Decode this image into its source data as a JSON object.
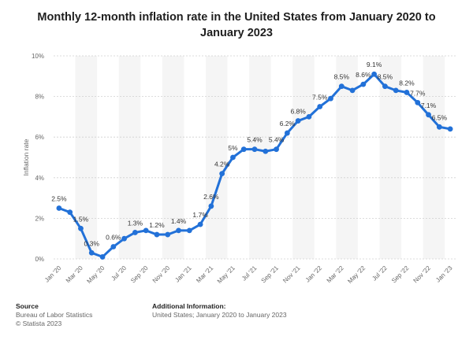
{
  "title": "Monthly 12-month inflation rate in the United States from January 2020 to January 2023",
  "source": {
    "heading": "Source",
    "line1": "Bureau of Labor Statistics",
    "line2": "© Statista 2023"
  },
  "additional_info": {
    "heading": "Additional Information:",
    "line1": "United States; January 2020 to January 2023"
  },
  "colors": {
    "line": "#2271d8",
    "band": "#f5f5f5",
    "grid": "#d0d0d0",
    "text": "#444444"
  },
  "chart_data": {
    "type": "line",
    "title": "Monthly 12-month inflation rate in the United States from January 2020 to January 2023",
    "xlabel": "",
    "ylabel": "Inflation rate",
    "ylim": [
      0,
      10
    ],
    "yticks": [
      "0%",
      "2%",
      "4%",
      "6%",
      "8%",
      "10%"
    ],
    "grid": true,
    "xticks": [
      "Jan '20",
      "Mar '20",
      "May '20",
      "Jul '20",
      "Sep '20",
      "Nov '20",
      "Jan '21",
      "Mar '21",
      "May '21",
      "Jul '21",
      "Sep '21",
      "Nov '21",
      "Jan '22",
      "Mar '22",
      "May '22",
      "Jul '22",
      "Sep '22",
      "Nov '22",
      "Jan '23"
    ],
    "series": [
      {
        "values": [
          2.5,
          2.3,
          1.5,
          0.3,
          0.1,
          0.6,
          1.0,
          1.3,
          1.4,
          1.2,
          1.2,
          1.4,
          1.4,
          1.7,
          2.6,
          4.2,
          5.0,
          5.4,
          5.4,
          5.3,
          5.4,
          6.2,
          6.8,
          7.0,
          7.5,
          7.9,
          8.5,
          8.3,
          8.6,
          9.1,
          8.5,
          8.3,
          8.2,
          7.7,
          7.1,
          6.5,
          6.4
        ]
      }
    ],
    "data_labels": [
      {
        "index": 0,
        "text": "2.5%"
      },
      {
        "index": 2,
        "text": "1.5%"
      },
      {
        "index": 3,
        "text": "0.3%"
      },
      {
        "index": 5,
        "text": "0.6%"
      },
      {
        "index": 7,
        "text": "1.3%"
      },
      {
        "index": 9,
        "text": "1.2%"
      },
      {
        "index": 11,
        "text": "1.4%"
      },
      {
        "index": 13,
        "text": "1.7%"
      },
      {
        "index": 14,
        "text": "2.6%"
      },
      {
        "index": 15,
        "text": "4.2%"
      },
      {
        "index": 16,
        "text": "5%"
      },
      {
        "index": 18,
        "text": "5.4%"
      },
      {
        "index": 20,
        "text": "5.4%"
      },
      {
        "index": 21,
        "text": "6.2%"
      },
      {
        "index": 22,
        "text": "6.8%"
      },
      {
        "index": 24,
        "text": "7.5%"
      },
      {
        "index": 26,
        "text": "8.5%"
      },
      {
        "index": 28,
        "text": "8.6%"
      },
      {
        "index": 29,
        "text": "9.1%"
      },
      {
        "index": 30,
        "text": "8.5%"
      },
      {
        "index": 32,
        "text": "8.2%"
      },
      {
        "index": 33,
        "text": "7.7%"
      },
      {
        "index": 34,
        "text": "7.1%"
      },
      {
        "index": 35,
        "text": "6.5%"
      }
    ]
  }
}
